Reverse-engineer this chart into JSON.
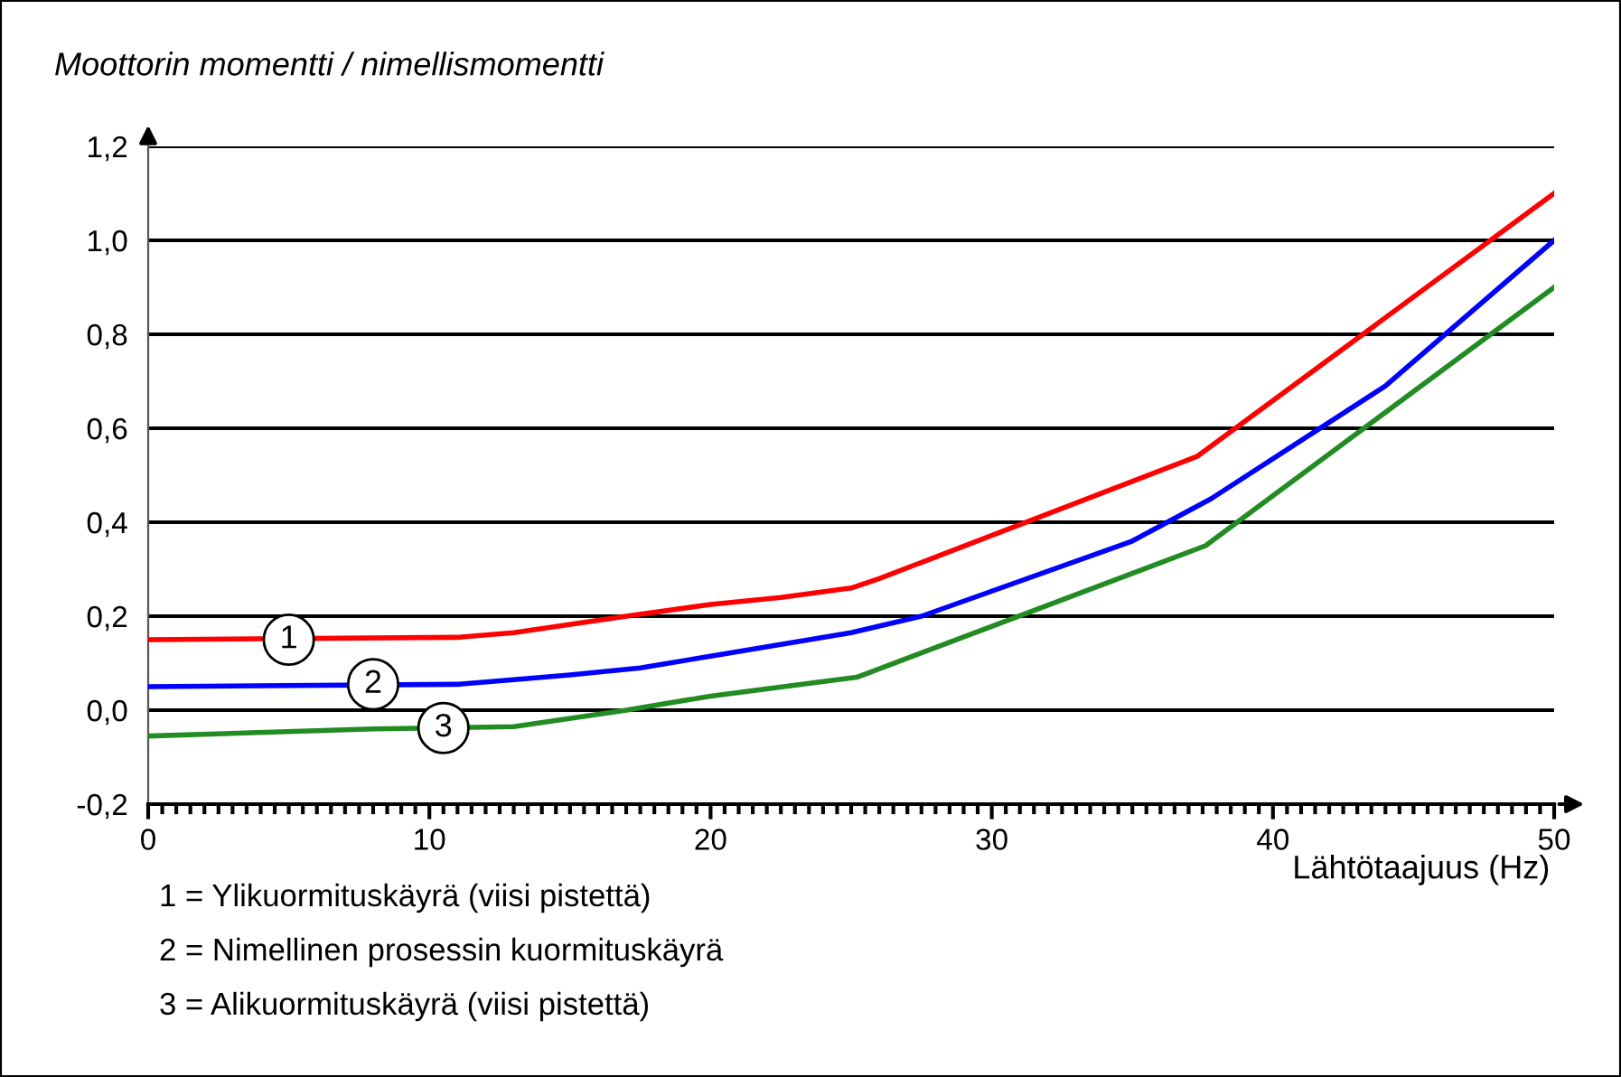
{
  "chart_data": {
    "type": "line",
    "ylabel": "Moottorin momentti / nimellismomentti",
    "xlabel": "Lähtötaajuus (Hz)",
    "series": [
      {
        "color": "#ff0000",
        "x": [
          0,
          11,
          13,
          17,
          20,
          22.5,
          25,
          26,
          37.3,
          50
        ],
        "values": [
          0.15,
          0.155,
          0.165,
          0.2,
          0.225,
          0.24,
          0.26,
          0.28,
          0.54,
          1.1
        ]
      },
      {
        "color": "#0000ff",
        "x": [
          0,
          11,
          13,
          15,
          17.5,
          20,
          22.5,
          25,
          27.5,
          35,
          37.8,
          44,
          50
        ],
        "values": [
          0.05,
          0.055,
          0.065,
          0.075,
          0.09,
          0.115,
          0.14,
          0.165,
          0.2,
          0.36,
          0.45,
          0.69,
          1.0
        ]
      },
      {
        "color": "#228b22",
        "x": [
          0,
          8,
          13,
          17,
          20,
          25.2,
          37.6,
          50
        ],
        "values": [
          -0.055,
          -0.04,
          -0.035,
          0.0,
          0.03,
          0.07,
          0.35,
          0.9
        ]
      }
    ],
    "xlim": [
      0,
      50
    ],
    "xticks": [
      0,
      10,
      20,
      30,
      40,
      50
    ],
    "ylim": [
      -0.2,
      1.2
    ],
    "yticks": [
      {
        "value": -0.2,
        "label": "-0,2"
      },
      {
        "value": 0.0,
        "label": "0,0"
      },
      {
        "value": 0.2,
        "label": "0,2"
      },
      {
        "value": 0.4,
        "label": "0,4"
      },
      {
        "value": 0.6,
        "label": "0,6"
      },
      {
        "value": 0.8,
        "label": "0,8"
      },
      {
        "value": 1.0,
        "label": "1,0"
      },
      {
        "value": 1.2,
        "label": "1,2"
      }
    ],
    "grid": "y",
    "marker": "none",
    "line_style": "solid",
    "annotations": [
      {
        "text": "1",
        "x": 5,
        "y": 0.15
      },
      {
        "text": "2",
        "x": 8,
        "y": 0.055
      },
      {
        "text": "3",
        "x": 10.5,
        "y": -0.038
      },
      "1 = Ylikuormituskäyrä (viisi pistettä)",
      "2 = Nimellinen prosessin kuormituskäyrä",
      "3 = Alikuormituskäyrä (viisi pistettä)"
    ]
  }
}
